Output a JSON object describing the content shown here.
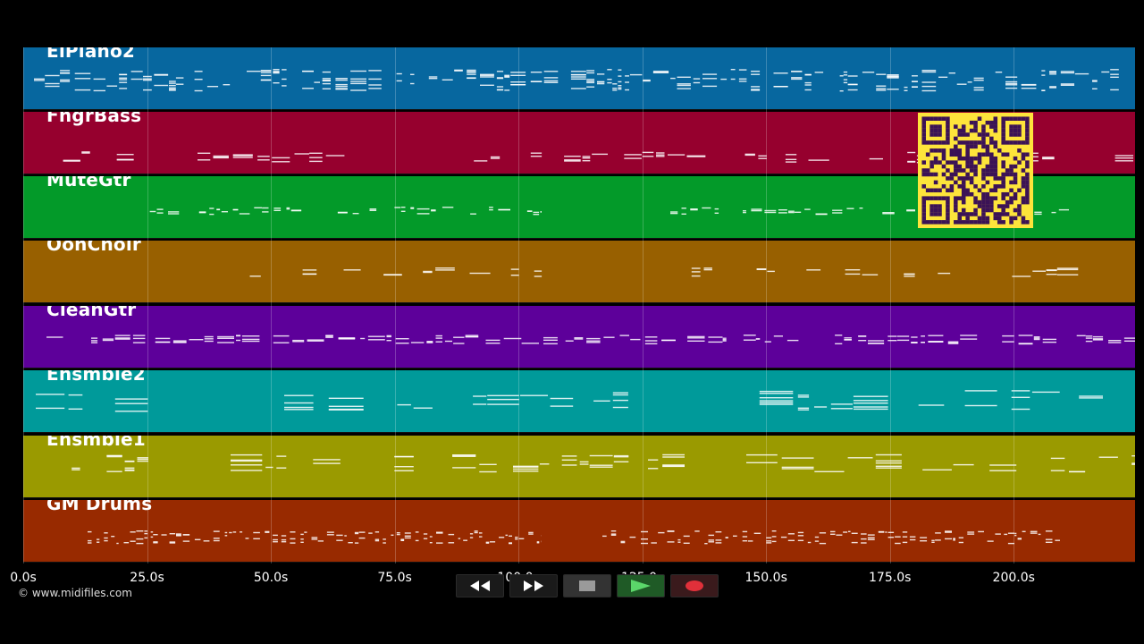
{
  "tracks": [
    {
      "name": "ElPiano2",
      "color": "#07679f"
    },
    {
      "name": "FngrBass",
      "color": "#96002e"
    },
    {
      "name": "MuteGtr",
      "color": "#039a29"
    },
    {
      "name": "OohChoir",
      "color": "#986000"
    },
    {
      "name": "CleanGtr",
      "color": "#5d009a"
    },
    {
      "name": "Ensmble2",
      "color": "#009a9a"
    },
    {
      "name": "Ensmble1",
      "color": "#9a9a00"
    },
    {
      "name": "GM Drums",
      "color": "#982a00"
    }
  ],
  "timeline": {
    "ticks": [
      "0.0s",
      "25.0s",
      "50.0s",
      "75.0s",
      "100.0s",
      "125.0s",
      "150.0s",
      "175.0s",
      "200.0s"
    ],
    "tick_values": [
      0,
      25,
      50,
      75,
      100,
      125,
      150,
      175,
      200
    ],
    "max_seconds": 224.5
  },
  "copyright": "© www.midifiles.com",
  "transport": {
    "buttons": [
      {
        "icon": "rewind-icon"
      },
      {
        "icon": "fast-forward-icon"
      },
      {
        "icon": "stop-icon"
      },
      {
        "icon": "play-icon"
      },
      {
        "icon": "record-icon"
      }
    ]
  },
  "colors": {
    "background": "#000000",
    "qr_background": "#fde43b",
    "qr_modules": "#3b1256",
    "play": "#5bd66a",
    "record": "#e0303a"
  }
}
